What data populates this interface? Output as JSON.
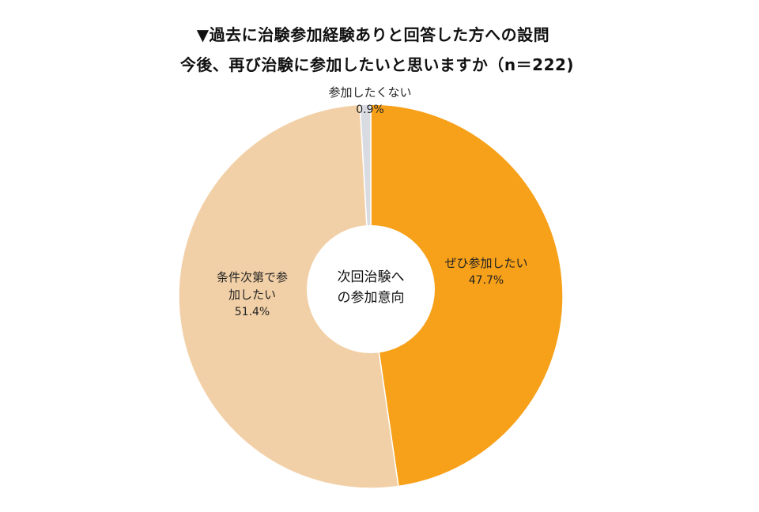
{
  "header": {
    "title_line1": "▼過去に治験参加経験ありと回答した方への設問",
    "title_line2": "今後、再び治験に参加したいと思いますか（n＝222)"
  },
  "center_label": {
    "line1": "次回治験へ",
    "line2": "の参加意向"
  },
  "labels": {
    "yes": {
      "name": "ぜひ参加したい",
      "pct": "47.7%"
    },
    "conditional": {
      "line1": "条件次第で参",
      "line2": "加したい",
      "pct": "51.4%"
    },
    "no": {
      "name": "参加したくない",
      "pct": "0.9%"
    }
  },
  "colors": {
    "yes": "#F7A11A",
    "conditional": "#F2D0A7",
    "no": "#D9DBE3"
  },
  "chart_data": {
    "type": "pie",
    "subtype": "donut",
    "title": "今後、再び治験に参加したいと思いますか（n＝222)",
    "subtitle": "▼過去に治験参加経験ありと回答した方への設問",
    "center_text": "次回治験への参加意向",
    "n": 222,
    "categories": [
      "ぜひ参加したい",
      "条件次第で参加したい",
      "参加したくない"
    ],
    "values": [
      47.7,
      51.4,
      0.9
    ],
    "unit": "%",
    "colors": [
      "#F7A11A",
      "#F2D0A7",
      "#D9DBE3"
    ],
    "start_angle": "12 o'clock, clockwise",
    "legend": "none (data labels on slices)"
  }
}
